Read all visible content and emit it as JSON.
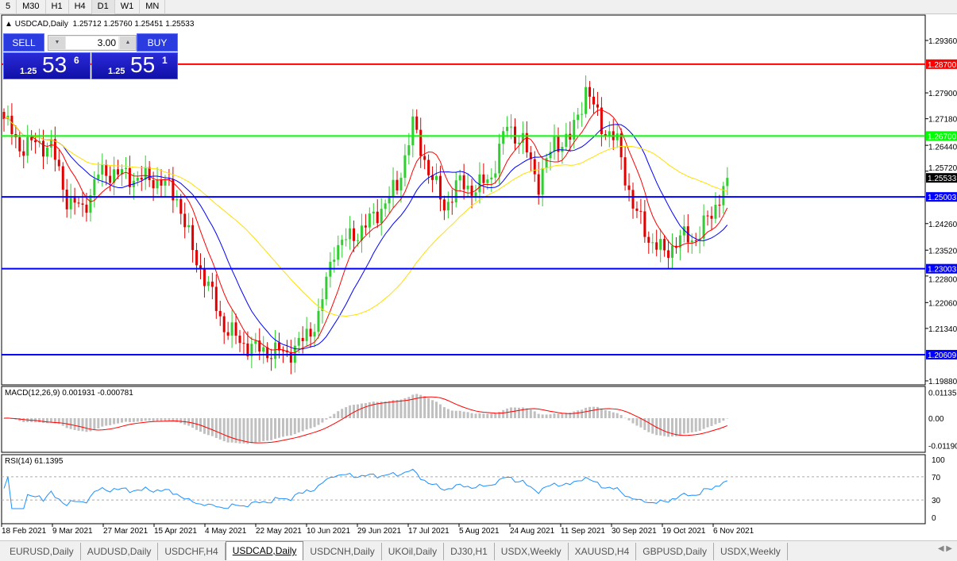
{
  "timeframes": [
    "5",
    "M30",
    "H1",
    "H4",
    "D1",
    "W1",
    "MN"
  ],
  "active_timeframe": "D1",
  "chart": {
    "symbol_header": "USDCAD,Daily",
    "ohlc": "1.25712 1.25760 1.25451 1.25533",
    "trade_panel": {
      "sell_label": "SELL",
      "buy_label": "BUY",
      "lot": "3.00",
      "sell_prefix": "1.25",
      "sell_big": "53",
      "sell_sup": "6",
      "buy_prefix": "1.25",
      "buy_big": "55",
      "buy_sup": "1"
    },
    "price_ticks": [
      "1.29360",
      "1.27900",
      "1.27180",
      "1.26440",
      "1.25720",
      "1.24260",
      "1.23520",
      "1.22800",
      "1.22060",
      "1.21340",
      "1.19880"
    ],
    "price_tick_values": [
      1.2936,
      1.279,
      1.2718,
      1.2644,
      1.2572,
      1.2426,
      1.2352,
      1.228,
      1.2206,
      1.2134,
      1.1988
    ],
    "current_price": "1.25533",
    "horizontal_lines": [
      {
        "label": "1.28700",
        "value": 1.287,
        "color": "#ff0000"
      },
      {
        "label": "1.26700",
        "value": 1.267,
        "color": "#00ff00"
      },
      {
        "label": "1.25003",
        "value": 1.25003,
        "color": "#0000ff"
      },
      {
        "label": "1.23003",
        "value": 1.23003,
        "color": "#0000ff"
      },
      {
        "label": "1.20609",
        "value": 1.20609,
        "color": "#0000ff"
      }
    ],
    "closes_every_4_bars": [
      1.2717,
      1.264,
      1.265,
      1.264,
      1.2496,
      1.2463,
      1.2563,
      1.257,
      1.2555,
      1.2551,
      1.2545,
      1.25,
      1.235,
      1.225,
      1.214,
      1.2098,
      1.2076,
      1.207,
      1.2065,
      1.2098,
      1.2165,
      1.236,
      1.2386,
      1.242,
      1.247,
      1.253,
      1.27,
      1.2574,
      1.2474,
      1.254,
      1.252,
      1.256,
      1.27,
      1.2651,
      1.254,
      1.2651,
      1.266,
      1.28,
      1.27,
      1.265,
      1.2474,
      1.2386,
      1.2342,
      1.2386,
      1.2386,
      1.2452,
      1.2553
    ],
    "colors": {
      "bull": "#32cd32",
      "bear": "#e00000",
      "ma_fast": "#ff0000",
      "ma_mid": "#0000ff",
      "ma_slow": "#ffe000",
      "macd_hist": "#c0c0c0",
      "macd_signal": "#ff0000",
      "rsi": "#1e90ff"
    },
    "macd": {
      "label": "MACD(12,26,9) 0.001931 -0.000781",
      "ticks": [
        "0.01135",
        "0.00",
        "-0.01190"
      ]
    },
    "rsi": {
      "label": "RSI(14) 61.1395",
      "ticks": [
        "100",
        "70",
        "30",
        "0"
      ]
    },
    "dates": [
      "18 Feb 2021",
      "9 Mar 2021",
      "27 Mar 2021",
      "15 Apr 2021",
      "4 May 2021",
      "22 May 2021",
      "10 Jun 2021",
      "29 Jun 2021",
      "17 Jul 2021",
      "5 Aug 2021",
      "24 Aug 2021",
      "11 Sep 2021",
      "30 Sep 2021",
      "19 Oct 2021",
      "6 Nov 2021"
    ]
  },
  "tabs": [
    "EURUSD,Daily",
    "AUDUSD,Daily",
    "USDCHF,H4",
    "USDCAD,Daily",
    "USDCNH,Daily",
    "UKOil,Daily",
    "DJ30,H1",
    "USDX,Weekly",
    "XAUUSD,H4",
    "GBPUSD,Daily",
    "USDX,Weekly"
  ],
  "active_tab": "USDCAD,Daily"
}
